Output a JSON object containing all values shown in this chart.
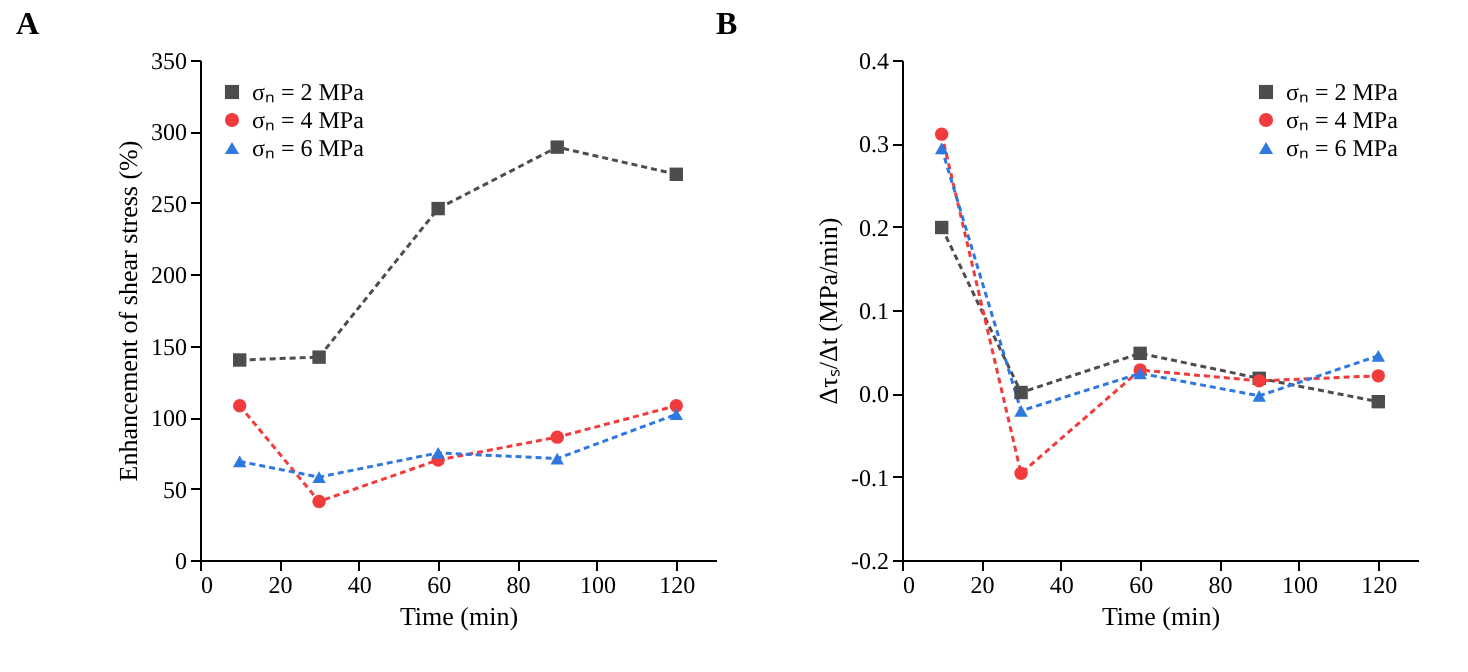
{
  "chart_data": [
    {
      "type": "line",
      "title": "A",
      "xlabel": "Time (min)",
      "ylabel": "Enhancement of shear stress (%)",
      "x": [
        10,
        30,
        60,
        90,
        120
      ],
      "xlim": [
        0,
        130
      ],
      "xticks": [
        0,
        20,
        40,
        60,
        80,
        100,
        120
      ],
      "ylim": [
        0,
        350
      ],
      "yticks": [
        0,
        50,
        100,
        150,
        200,
        250,
        300,
        350
      ],
      "legend": "top left",
      "line_style": "dashed",
      "grid": false,
      "series": [
        {
          "name": "σₙ = 2 MPa",
          "color": "#4d4d4d",
          "marker": "square",
          "values": [
            140,
            142,
            246,
            289,
            270
          ]
        },
        {
          "name": "σₙ = 4 MPa",
          "color": "#f03c3c",
          "marker": "circle",
          "values": [
            108,
            41,
            70,
            86,
            108
          ]
        },
        {
          "name": "σₙ = 6 MPa",
          "color": "#2f78e0",
          "marker": "triangle",
          "values": [
            69,
            58,
            75,
            71,
            102
          ]
        }
      ]
    },
    {
      "type": "line",
      "title": "B",
      "xlabel": "Time (min)",
      "ylabel": "Δτₛ/Δt (MPa/min)",
      "x": [
        10,
        30,
        60,
        90,
        120
      ],
      "xlim": [
        0,
        130
      ],
      "xticks": [
        0,
        20,
        40,
        60,
        80,
        100,
        120
      ],
      "ylim": [
        -0.2,
        0.4
      ],
      "yticks": [
        {
          "value": -0.2,
          "label": "-0.2"
        },
        {
          "value": -0.1,
          "label": "-0.1"
        },
        {
          "value": 0,
          "label": "0.0"
        },
        {
          "value": 0.1,
          "label": "0.1"
        },
        {
          "value": 0.2,
          "label": "0.2"
        },
        {
          "value": 0.3,
          "label": "0.3"
        },
        {
          "value": 0.4,
          "label": "0.4"
        }
      ],
      "legend": "top right",
      "line_style": "dashed",
      "grid": false,
      "series": [
        {
          "name": "σₙ = 2 MPa",
          "color": "#4d4d4d",
          "marker": "square",
          "values": [
            0.199,
            0.001,
            0.048,
            0.018,
            -0.01
          ]
        },
        {
          "name": "σₙ = 4 MPa",
          "color": "#f03c3c",
          "marker": "circle",
          "values": [
            0.311,
            -0.096,
            0.028,
            0.015,
            0.021
          ]
        },
        {
          "name": "σₙ = 6 MPa",
          "color": "#2f78e0",
          "marker": "triangle",
          "values": [
            0.294,
            -0.021,
            0.024,
            -0.003,
            0.045
          ]
        }
      ]
    }
  ]
}
